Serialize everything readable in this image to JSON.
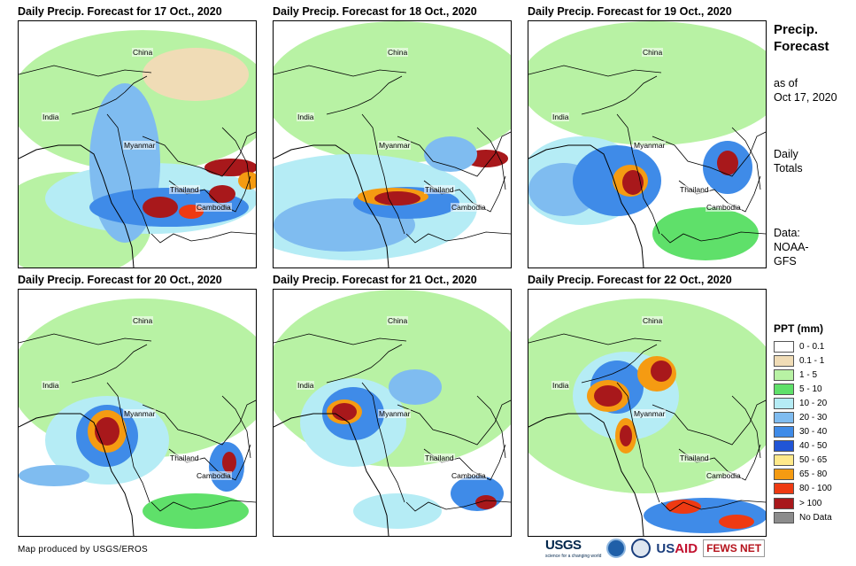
{
  "panels": [
    {
      "title": "Daily Precip. Forecast for 17 Oct., 2020",
      "places": [
        "China",
        "India",
        "Myanmar",
        "Thailand",
        "Cambodia"
      ]
    },
    {
      "title": "Daily Precip. Forecast for 18 Oct., 2020",
      "places": [
        "China",
        "India",
        "Myanmar",
        "Thailand",
        "Cambodia"
      ]
    },
    {
      "title": "Daily Precip. Forecast for 19 Oct., 2020",
      "places": [
        "China",
        "India",
        "Myanmar",
        "Thailand",
        "Cambodia"
      ]
    },
    {
      "title": "Daily Precip. Forecast for 20 Oct., 2020",
      "places": [
        "China",
        "India",
        "Myanmar",
        "Thailand",
        "Cambodia"
      ]
    },
    {
      "title": "Daily Precip. Forecast for 21 Oct., 2020",
      "places": [
        "China",
        "India",
        "Myanmar",
        "Thailand",
        "Cambodia"
      ]
    },
    {
      "title": "Daily Precip. Forecast for 22 Oct., 2020",
      "places": [
        "China",
        "India",
        "Myanmar",
        "Thailand",
        "Cambodia"
      ]
    }
  ],
  "side": {
    "title_line1": "Precip.",
    "title_line2": "Forecast",
    "asof_line1": "as of",
    "asof_line2": "Oct 17, 2020",
    "daily_line1": "Daily",
    "daily_line2": "Totals",
    "data_line1": "Data:",
    "data_line2": "NOAA-",
    "data_line3": "GFS"
  },
  "legend": {
    "title": "PPT (mm)",
    "items": [
      {
        "label": "0 - 0.1",
        "color": "#ffffff"
      },
      {
        "label": "0.1 - 1",
        "color": "#f0dcb6"
      },
      {
        "label": "1 - 5",
        "color": "#b8f2a4"
      },
      {
        "label": "5 - 10",
        "color": "#5fe06a"
      },
      {
        "label": "10 - 20",
        "color": "#b5ecf5"
      },
      {
        "label": "20 - 30",
        "color": "#7fbcf0"
      },
      {
        "label": "30 - 40",
        "color": "#3f8be8"
      },
      {
        "label": "40 - 50",
        "color": "#2155d6"
      },
      {
        "label": "50 - 65",
        "color": "#ffe98a"
      },
      {
        "label": "65 - 80",
        "color": "#f59b12"
      },
      {
        "label": "80 - 100",
        "color": "#ee3a12"
      },
      {
        "label": "> 100",
        "color": "#a8181b"
      },
      {
        "label": "No Data",
        "color": "#8c8c8c"
      }
    ]
  },
  "credit": "Map produced by USGS/EROS",
  "logos": {
    "usgs": "USGS",
    "usgs_tagline": "science for a changing world",
    "usaid_us": "US",
    "usaid_aid": "AID",
    "fews": "FEWS NET"
  }
}
